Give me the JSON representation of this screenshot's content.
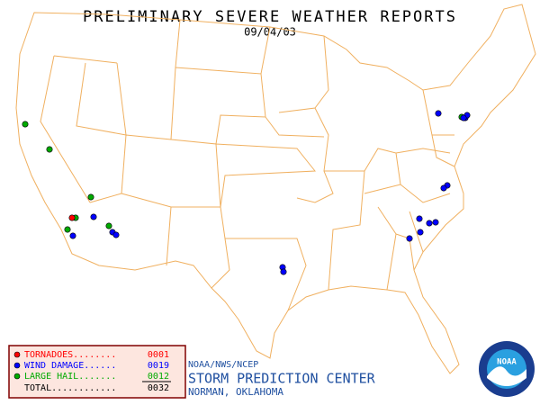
{
  "header": {
    "title": "PRELIMINARY SEVERE WEATHER REPORTS",
    "date": "09/04/03"
  },
  "legend": {
    "items": [
      {
        "label": "TORNADOES........",
        "count": "0001",
        "color": "#ff0000"
      },
      {
        "label": "WIND DAMAGE......",
        "count": "0019",
        "color": "#0000ff"
      },
      {
        "label": "LARGE HAIL.......",
        "count": "0012",
        "color": "#00aa00"
      }
    ],
    "total": {
      "label": "TOTAL............",
      "count": "0032"
    }
  },
  "footer": {
    "agency": "NOAA/NWS/NCEP",
    "center": "STORM PREDICTION CENTER",
    "location": "NORMAN, OKLAHOMA"
  },
  "logo": {
    "text": "NOAA"
  }
}
